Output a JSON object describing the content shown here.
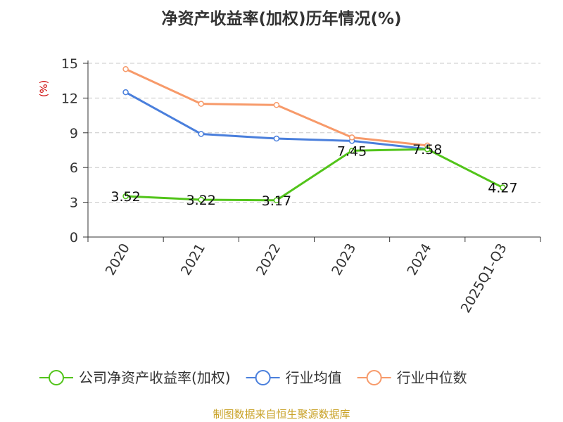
{
  "chart_data": {
    "type": "line",
    "title": "净资产收益率(加权)历年情况(%)",
    "ylabel": "(%)",
    "xlabel": "",
    "ylim": [
      0,
      15
    ],
    "yticks": [
      0,
      3,
      6,
      9,
      12,
      15
    ],
    "categories": [
      "2020",
      "2021",
      "2022",
      "2023",
      "2024",
      "2025Q1-Q3"
    ],
    "grid": true,
    "legend_position": "bottom",
    "series": [
      {
        "name": "公司净资产收益率(加权)",
        "color": "#52c41a",
        "values": [
          3.52,
          3.22,
          3.17,
          7.45,
          7.58,
          4.27
        ],
        "labels": [
          "3.52",
          "3.22",
          "3.17",
          "7.45",
          "7.58",
          "4.27"
        ]
      },
      {
        "name": "行业均值",
        "color": "#4a7fdc",
        "values": [
          12.5,
          8.9,
          8.5,
          8.3,
          7.6,
          null
        ]
      },
      {
        "name": "行业中位数",
        "color": "#f79a6a",
        "values": [
          14.5,
          11.5,
          11.4,
          8.6,
          7.9,
          null
        ]
      }
    ],
    "source": "制图数据来自恒生聚源数据库"
  }
}
